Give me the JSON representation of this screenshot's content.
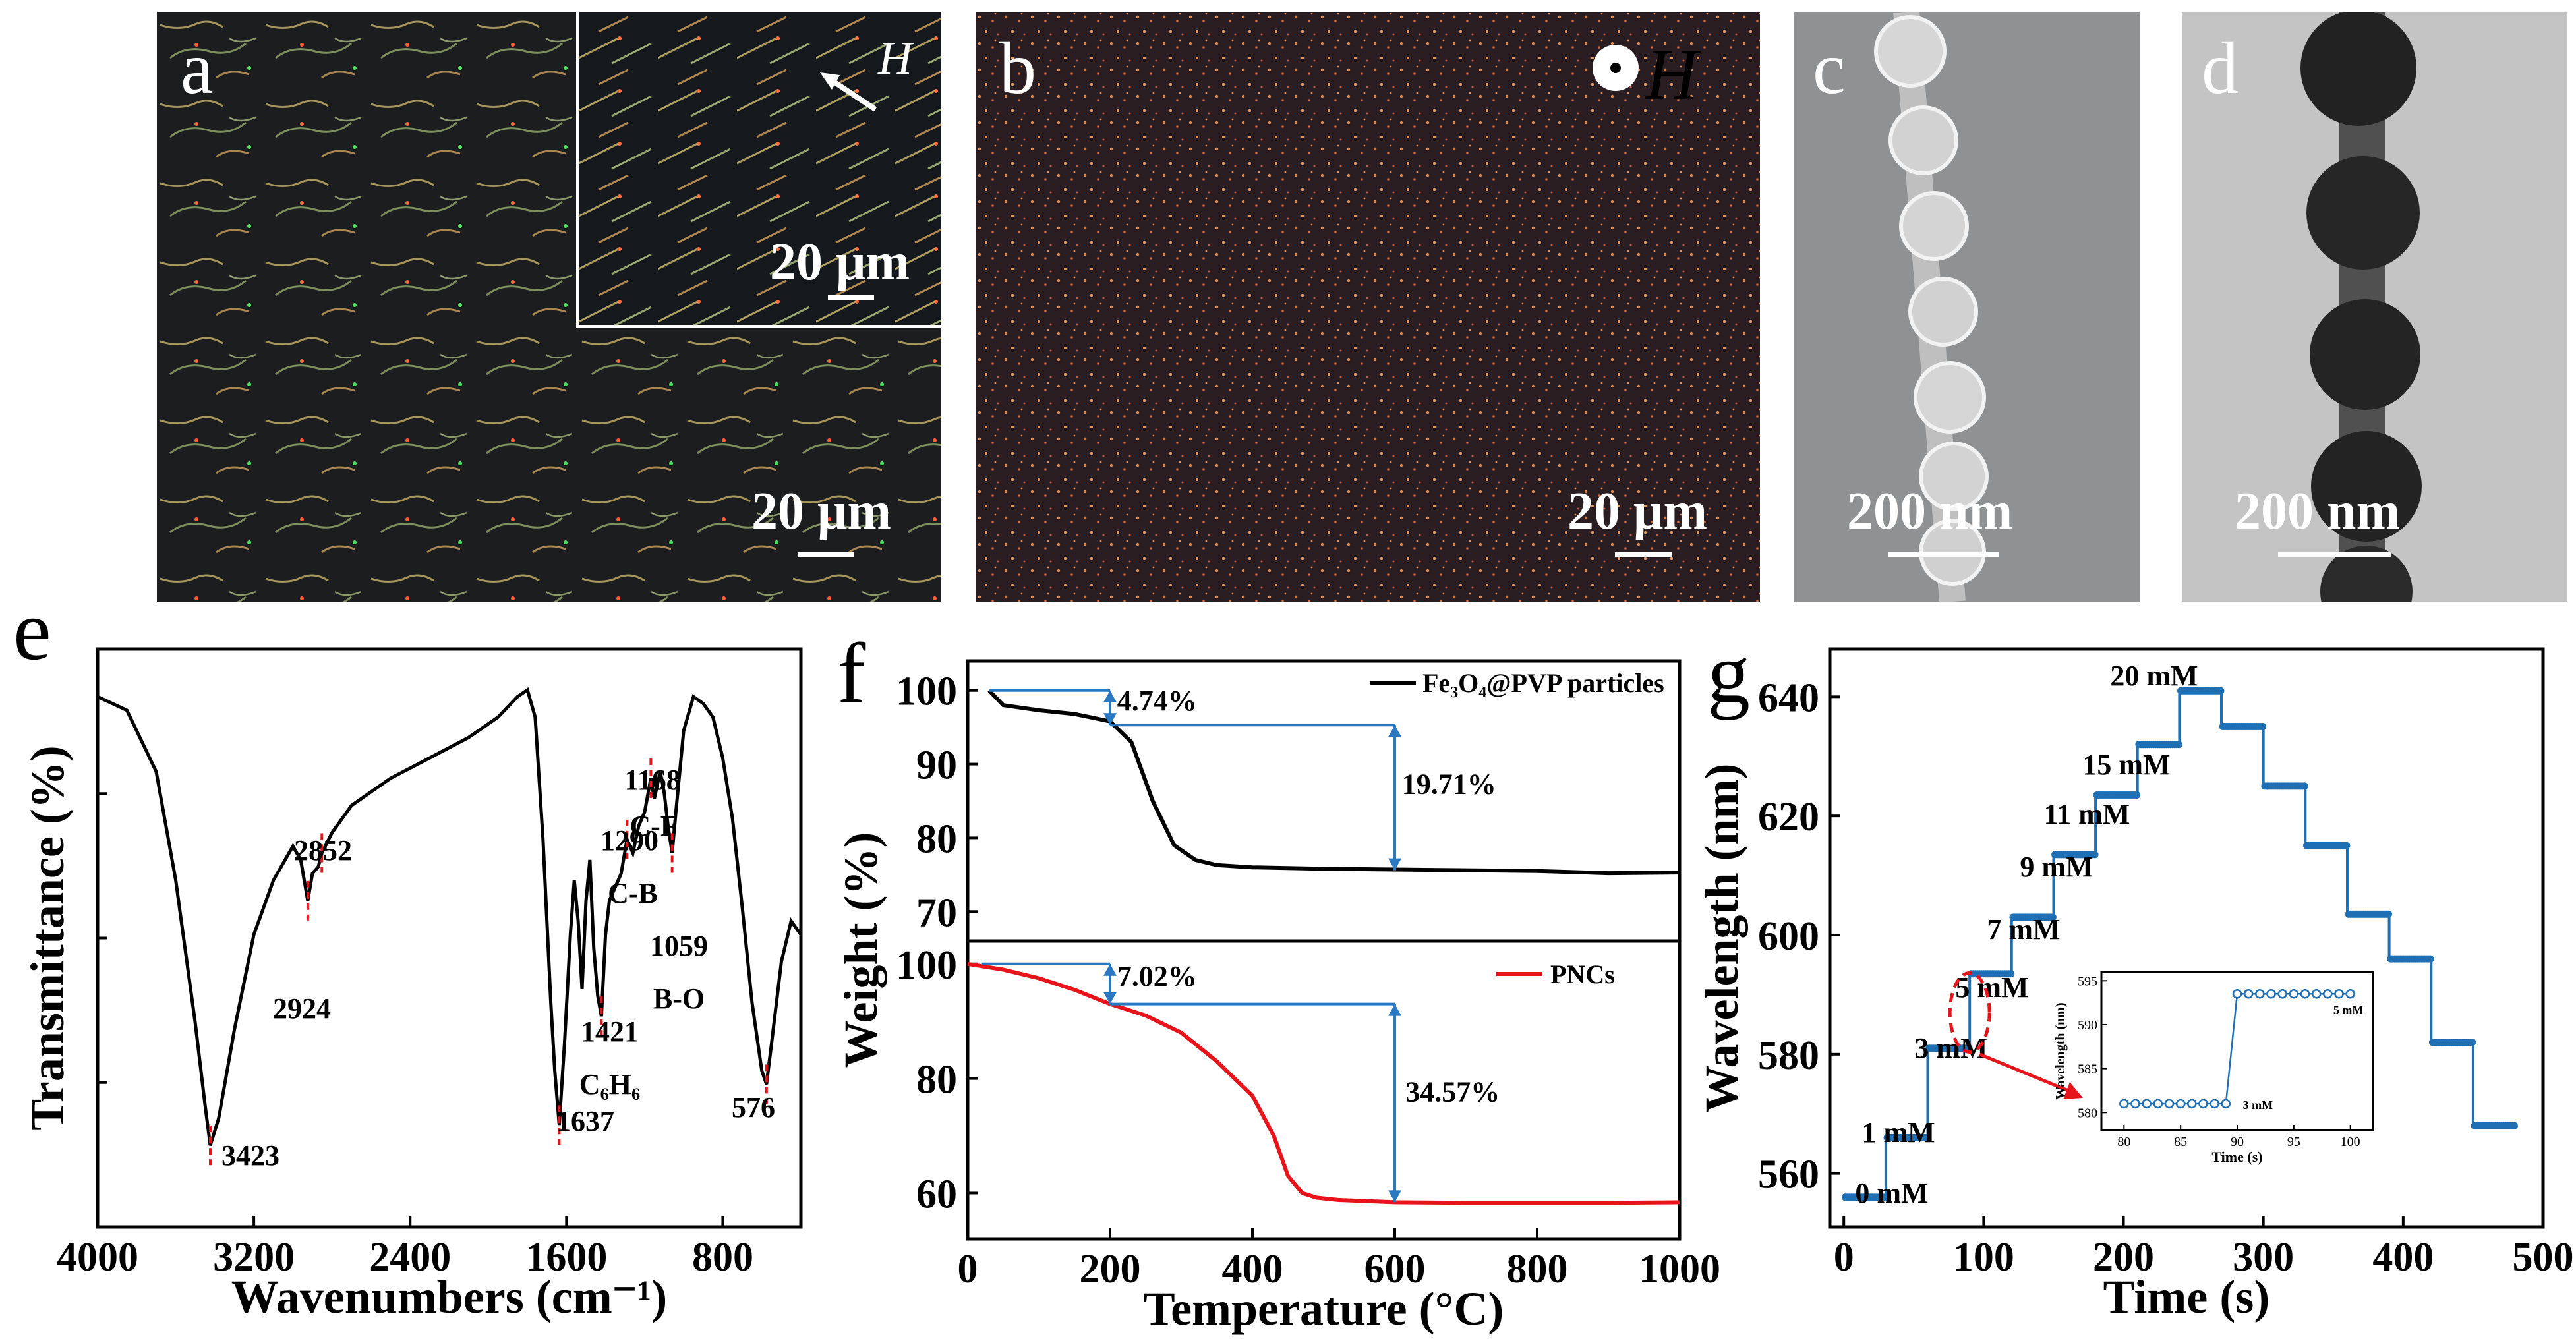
{
  "panels": {
    "a": {
      "label": "a",
      "scalebar": "20 μm",
      "inset_scalebar": "20 μm",
      "field": "H"
    },
    "b": {
      "label": "b",
      "scalebar": "20 μm",
      "field": "H"
    },
    "c": {
      "label": "c",
      "scalebar": "200 nm"
    },
    "d": {
      "label": "d",
      "scalebar": "200 nm"
    }
  },
  "colors": {
    "black_curve": "#000000",
    "red_curve": "#e8141b",
    "blue_marker": "#1f6fb4",
    "annotation_blue": "#2a78c2",
    "annotation_red": "#e8141b"
  },
  "chart_data": [
    {
      "panel": "e",
      "type": "line",
      "title": "",
      "xlabel": "Wavenumbers (cm⁻¹)",
      "ylabel": "Transmittance (%)",
      "xlim": [
        4000,
        400
      ],
      "xticks": [
        4000,
        3200,
        2400,
        1600,
        800
      ],
      "x": [
        4000,
        3850,
        3700,
        3600,
        3500,
        3450,
        3423,
        3380,
        3300,
        3200,
        3100,
        3000,
        2960,
        2924,
        2900,
        2870,
        2852,
        2800,
        2700,
        2500,
        2300,
        2100,
        1950,
        1850,
        1800,
        1760,
        1720,
        1680,
        1660,
        1637,
        1610,
        1580,
        1560,
        1540,
        1520,
        1500,
        1480,
        1460,
        1440,
        1421,
        1400,
        1380,
        1350,
        1320,
        1290,
        1260,
        1230,
        1200,
        1168,
        1150,
        1120,
        1100,
        1080,
        1059,
        1040,
        1000,
        950,
        900,
        850,
        800,
        750,
        700,
        650,
        600,
        576,
        550,
        500,
        450,
        400
      ],
      "y": [
        93,
        91,
        82,
        66,
        45,
        33,
        27,
        31,
        44,
        58,
        66,
        71,
        69,
        63,
        67,
        68,
        70,
        73,
        77,
        81,
        84,
        87,
        90,
        93,
        94,
        90,
        72,
        48,
        38,
        30,
        42,
        58,
        66,
        60,
        50,
        63,
        69,
        56,
        49,
        46,
        58,
        63,
        65,
        67,
        72,
        70,
        74,
        76,
        81,
        78,
        82,
        79,
        74,
        70,
        76,
        88,
        93,
        92,
        90,
        84,
        75,
        62,
        48,
        38,
        36,
        42,
        54,
        60,
        58
      ],
      "peak_labels": [
        "2852",
        "2924",
        "3423",
        "1637",
        "1421",
        "C₆H₆",
        "1290",
        "C-B",
        "1168",
        "C-F",
        "1059",
        "B-O",
        "576"
      ]
    },
    {
      "panel": "f-top",
      "type": "line",
      "title": "",
      "xlabel": "Temperature (°C)",
      "ylabel": "Weight (%)",
      "xlim": [
        0,
        1000
      ],
      "ylim": [
        66,
        104
      ],
      "yticks": [
        70,
        80,
        90,
        100
      ],
      "series": [
        {
          "name": "Fe₃O₄@PVP particles",
          "x": [
            30,
            50,
            100,
            150,
            200,
            230,
            260,
            290,
            320,
            350,
            400,
            500,
            600,
            700,
            800,
            900,
            1000
          ],
          "y": [
            100,
            98,
            97.3,
            96.8,
            95.8,
            93,
            85,
            79,
            77,
            76.3,
            76,
            75.8,
            75.7,
            75.6,
            75.5,
            75.2,
            75.3
          ]
        }
      ],
      "annotations": [
        "4.74%",
        "19.71%"
      ]
    },
    {
      "panel": "f-bottom",
      "type": "line",
      "xlim": [
        0,
        1000
      ],
      "ylim": [
        52,
        104
      ],
      "yticks": [
        60,
        80,
        100
      ],
      "series": [
        {
          "name": "PNCs",
          "x": [
            0,
            50,
            100,
            150,
            200,
            250,
            300,
            350,
            400,
            430,
            450,
            470,
            490,
            520,
            600,
            700,
            800,
            900,
            1000
          ],
          "y": [
            100,
            99,
            97.5,
            95.5,
            93,
            91,
            88,
            83,
            77,
            70,
            63,
            60,
            59.2,
            58.8,
            58.4,
            58.3,
            58.3,
            58.3,
            58.4
          ]
        }
      ],
      "annotations": [
        "7.02%",
        "34.57%"
      ]
    },
    {
      "panel": "g",
      "type": "line",
      "xlabel": "Time (s)",
      "ylabel": "Wavelength (nm)",
      "xlim": [
        -10,
        500
      ],
      "ylim": [
        551,
        648
      ],
      "xticks": [
        0,
        100,
        200,
        300,
        400,
        500
      ],
      "yticks": [
        560,
        580,
        600,
        620,
        640
      ],
      "steps": [
        {
          "t0": 0,
          "t1": 30,
          "y": 556
        },
        {
          "t0": 30,
          "t1": 60,
          "y": 566
        },
        {
          "t0": 60,
          "t1": 90,
          "y": 581
        },
        {
          "t0": 90,
          "t1": 120,
          "y": 593.5
        },
        {
          "t0": 120,
          "t1": 150,
          "y": 603
        },
        {
          "t0": 150,
          "t1": 180,
          "y": 613.5
        },
        {
          "t0": 180,
          "t1": 210,
          "y": 623.5
        },
        {
          "t0": 210,
          "t1": 240,
          "y": 632
        },
        {
          "t0": 240,
          "t1": 270,
          "y": 641
        },
        {
          "t0": 270,
          "t1": 300,
          "y": 635
        },
        {
          "t0": 300,
          "t1": 330,
          "y": 625
        },
        {
          "t0": 330,
          "t1": 360,
          "y": 615
        },
        {
          "t0": 360,
          "t1": 390,
          "y": 603.5
        },
        {
          "t0": 390,
          "t1": 420,
          "y": 596
        },
        {
          "t0": 420,
          "t1": 450,
          "y": 582
        },
        {
          "t0": 450,
          "t1": 480,
          "y": 568
        }
      ],
      "concentration_labels": [
        "0 mM",
        "1 mM",
        "3 mM",
        "5 mM",
        "7 mM",
        "9 mM",
        "11 mM",
        "15 mM",
        "20 mM"
      ],
      "inset": {
        "xlabel": "Time (s)",
        "ylabel": "Wavelength (nm)",
        "xlim": [
          78,
          102
        ],
        "ylim": [
          578,
          596
        ],
        "xticks": [
          80,
          85,
          90,
          95,
          100
        ],
        "yticks": [
          580,
          585,
          590,
          595
        ],
        "x": [
          80,
          81,
          82,
          83,
          84,
          85,
          86,
          87,
          88,
          89,
          90,
          91,
          92,
          93,
          94,
          95,
          96,
          97,
          98,
          99,
          100
        ],
        "y": [
          581,
          581,
          581,
          581,
          581,
          581,
          581,
          581,
          581,
          581,
          593.5,
          593.5,
          593.5,
          593.5,
          593.5,
          593.5,
          593.5,
          593.5,
          593.5,
          593.5,
          593.5
        ],
        "labels": [
          "3 mM",
          "5 mM"
        ]
      }
    }
  ]
}
